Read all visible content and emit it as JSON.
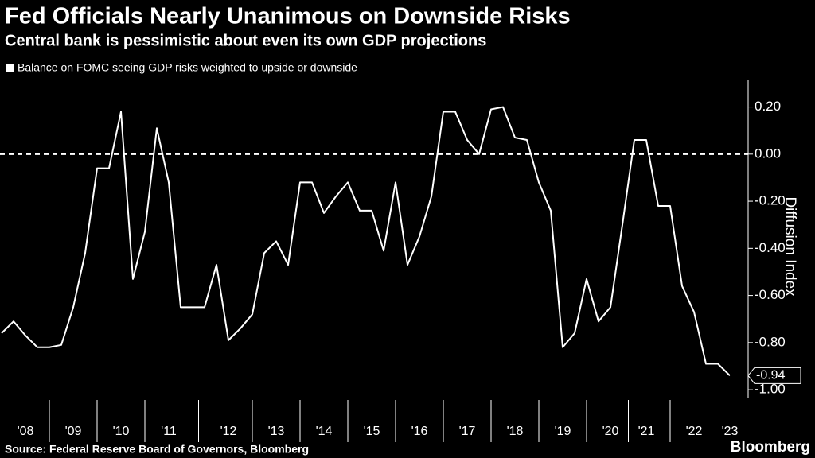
{
  "chart_data": {
    "type": "line",
    "title": "Fed Officials Nearly Unanimous on Downside Risks",
    "subtitle": "Central bank is pessimistic about even its own GDP projections",
    "y_axis_label": "Diffusion Index",
    "source": "Source: Federal Reserve Board of Governors, Bloomberg",
    "brand": "Bloomberg",
    "categories": [
      null,
      null,
      "'08",
      null,
      null,
      null,
      "'09",
      null,
      null,
      null,
      "'10",
      null,
      null,
      null,
      "'11",
      null,
      null,
      null,
      null,
      "'12",
      null,
      null,
      null,
      "'13",
      null,
      null,
      null,
      "'14",
      null,
      null,
      null,
      "'15",
      null,
      null,
      null,
      "'16",
      null,
      null,
      null,
      "'17",
      null,
      null,
      null,
      "'18",
      null,
      null,
      null,
      "'19",
      null,
      null,
      null,
      "'20",
      null,
      null,
      "'21",
      null,
      null,
      null,
      "'22",
      null,
      null,
      "'23"
    ],
    "series": [
      {
        "name": "Balance on FOMC seeing GDP risks weighted to upside or downside",
        "color": "#ffffff",
        "values": [
          -0.76,
          -0.71,
          -0.77,
          -0.82,
          -0.82,
          -0.81,
          -0.65,
          -0.42,
          -0.06,
          -0.06,
          0.18,
          -0.53,
          -0.33,
          0.11,
          -0.12,
          -0.65,
          -0.65,
          -0.65,
          -0.47,
          -0.79,
          -0.74,
          -0.68,
          -0.42,
          -0.37,
          -0.47,
          -0.12,
          -0.12,
          -0.25,
          -0.18,
          -0.12,
          -0.24,
          -0.24,
          -0.41,
          -0.12,
          -0.47,
          -0.35,
          -0.18,
          0.18,
          0.18,
          0.06,
          0,
          0.19,
          0.2,
          0.07,
          0.06,
          -0.12,
          -0.24,
          -0.82,
          -0.76,
          -0.53,
          -0.71,
          -0.65,
          -0.3,
          0.06,
          0.06,
          -0.22,
          -0.22,
          -0.56,
          -0.67,
          -0.89,
          -0.89,
          -0.94
        ]
      }
    ],
    "ylim": [
      -1.03,
      0.32
    ],
    "yticks": [
      {
        "value": 0.2,
        "label": "0.20"
      },
      {
        "value": 0,
        "label": "0.00"
      },
      {
        "value": -0.2,
        "label": "-0.20"
      },
      {
        "value": -0.4,
        "label": "-0.40"
      },
      {
        "value": -0.6,
        "label": "-0.60"
      },
      {
        "value": -0.8,
        "label": "-0.80"
      },
      {
        "value": -1,
        "label": "-1.00"
      }
    ],
    "reference_line": 0,
    "grid": false
  }
}
